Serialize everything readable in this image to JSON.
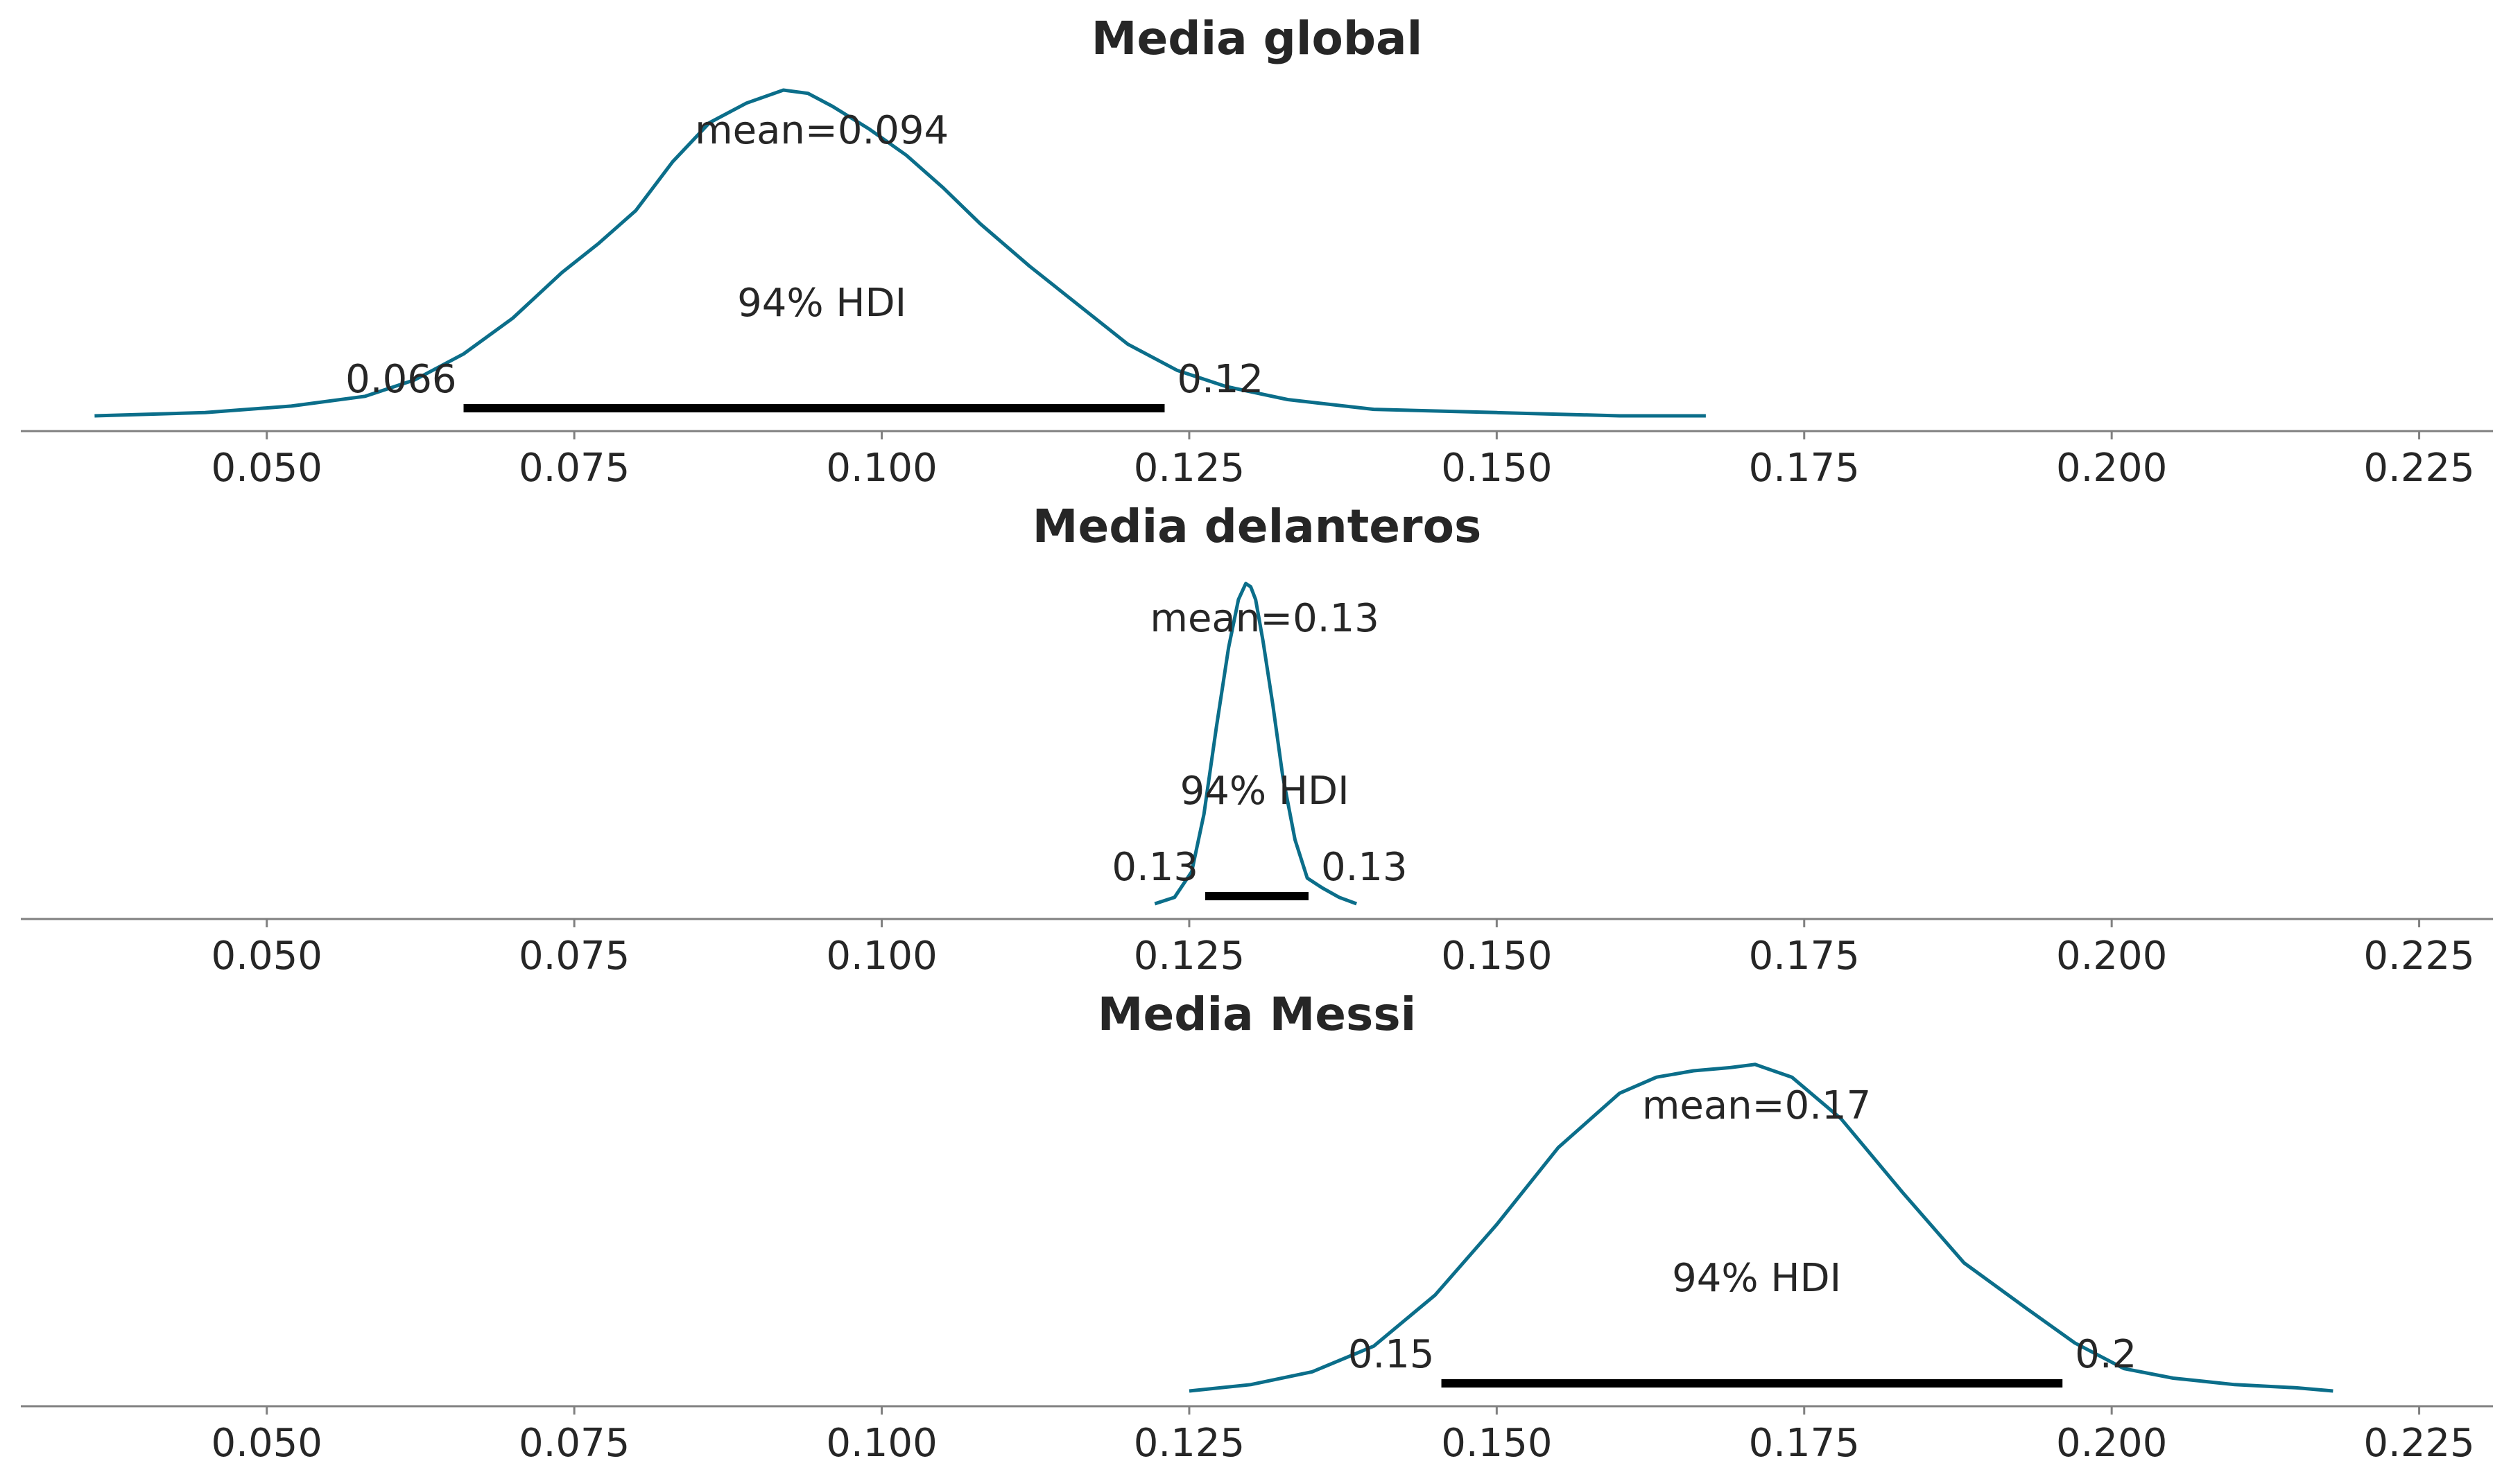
{
  "chart_data": [
    {
      "type": "line",
      "title": "Media global",
      "xlim": [
        0.03,
        0.231
      ],
      "x_ticks": [
        "0.050",
        "0.075",
        "0.100",
        "0.125",
        "0.150",
        "0.175",
        "0.200",
        "0.225"
      ],
      "x_tick_values": [
        0.05,
        0.075,
        0.1,
        0.125,
        0.15,
        0.175,
        0.2,
        0.225
      ],
      "line_color": "#0b6e8a",
      "density": {
        "x": [
          0.036,
          0.045,
          0.052,
          0.058,
          0.062,
          0.066,
          0.07,
          0.074,
          0.077,
          0.08,
          0.083,
          0.086,
          0.089,
          0.092,
          0.094,
          0.096,
          0.099,
          0.102,
          0.105,
          0.108,
          0.112,
          0.116,
          0.12,
          0.124,
          0.128,
          0.133,
          0.14,
          0.15,
          0.16,
          0.167
        ],
        "y": [
          0.0,
          0.01,
          0.03,
          0.06,
          0.11,
          0.19,
          0.3,
          0.44,
          0.53,
          0.63,
          0.78,
          0.9,
          0.96,
          1.0,
          0.99,
          0.95,
          0.88,
          0.8,
          0.7,
          0.59,
          0.46,
          0.34,
          0.22,
          0.14,
          0.09,
          0.05,
          0.02,
          0.01,
          0.0,
          0.0
        ]
      },
      "mean": 0.094,
      "mean_label": "mean=0.094",
      "hdi_label": "94% HDI",
      "hdi": [
        0.066,
        0.123
      ],
      "hdi_low_label": "0.066",
      "hdi_high_label": "0.12"
    },
    {
      "type": "line",
      "title": "Media delanteros",
      "xlim": [
        0.03,
        0.231
      ],
      "x_ticks": [
        "0.050",
        "0.075",
        "0.100",
        "0.125",
        "0.150",
        "0.175",
        "0.200",
        "0.225"
      ],
      "x_tick_values": [
        0.05,
        0.075,
        0.1,
        0.125,
        0.15,
        0.175,
        0.2,
        0.225
      ],
      "line_color": "#0b6e8a",
      "density": {
        "x": [
          0.1222,
          0.1238,
          0.1252,
          0.1262,
          0.1272,
          0.1282,
          0.129,
          0.1296,
          0.13,
          0.1304,
          0.131,
          0.1318,
          0.1326,
          0.1336,
          0.1346,
          0.1358,
          0.1372,
          0.1386
        ],
        "y": [
          0.0,
          0.02,
          0.1,
          0.28,
          0.55,
          0.8,
          0.95,
          1.0,
          0.99,
          0.95,
          0.82,
          0.62,
          0.4,
          0.2,
          0.08,
          0.05,
          0.02,
          0.0
        ]
      },
      "mean": 0.13,
      "mean_label": "mean=0.13",
      "hdi_label": "94% HDI",
      "hdi": [
        0.1263,
        0.1347
      ],
      "hdi_low_label": "0.13",
      "hdi_high_label": "0.13"
    },
    {
      "type": "line",
      "title": "Media Messi",
      "xlim": [
        0.03,
        0.231
      ],
      "x_ticks": [
        "0.050",
        "0.075",
        "0.100",
        "0.125",
        "0.150",
        "0.175",
        "0.200",
        "0.225"
      ],
      "x_tick_values": [
        0.05,
        0.075,
        0.1,
        0.125,
        0.15,
        0.175,
        0.2,
        0.225
      ],
      "line_color": "#0b6e8a",
      "density": {
        "x": [
          0.125,
          0.13,
          0.135,
          0.14,
          0.145,
          0.15,
          0.155,
          0.16,
          0.163,
          0.166,
          0.169,
          0.171,
          0.174,
          0.178,
          0.183,
          0.188,
          0.193,
          0.197,
          0.201,
          0.205,
          0.21,
          0.215,
          0.218
        ],
        "y": [
          0.0,
          0.02,
          0.06,
          0.14,
          0.3,
          0.52,
          0.76,
          0.93,
          0.98,
          1.0,
          1.01,
          1.02,
          0.98,
          0.85,
          0.62,
          0.4,
          0.26,
          0.15,
          0.07,
          0.04,
          0.02,
          0.01,
          0.0
        ]
      },
      "mean": 0.17,
      "mean_label": "mean=0.17",
      "hdi_label": "94% HDI",
      "hdi": [
        0.1455,
        0.196
      ],
      "hdi_low_label": "0.15",
      "hdi_high_label": "0.2"
    }
  ]
}
